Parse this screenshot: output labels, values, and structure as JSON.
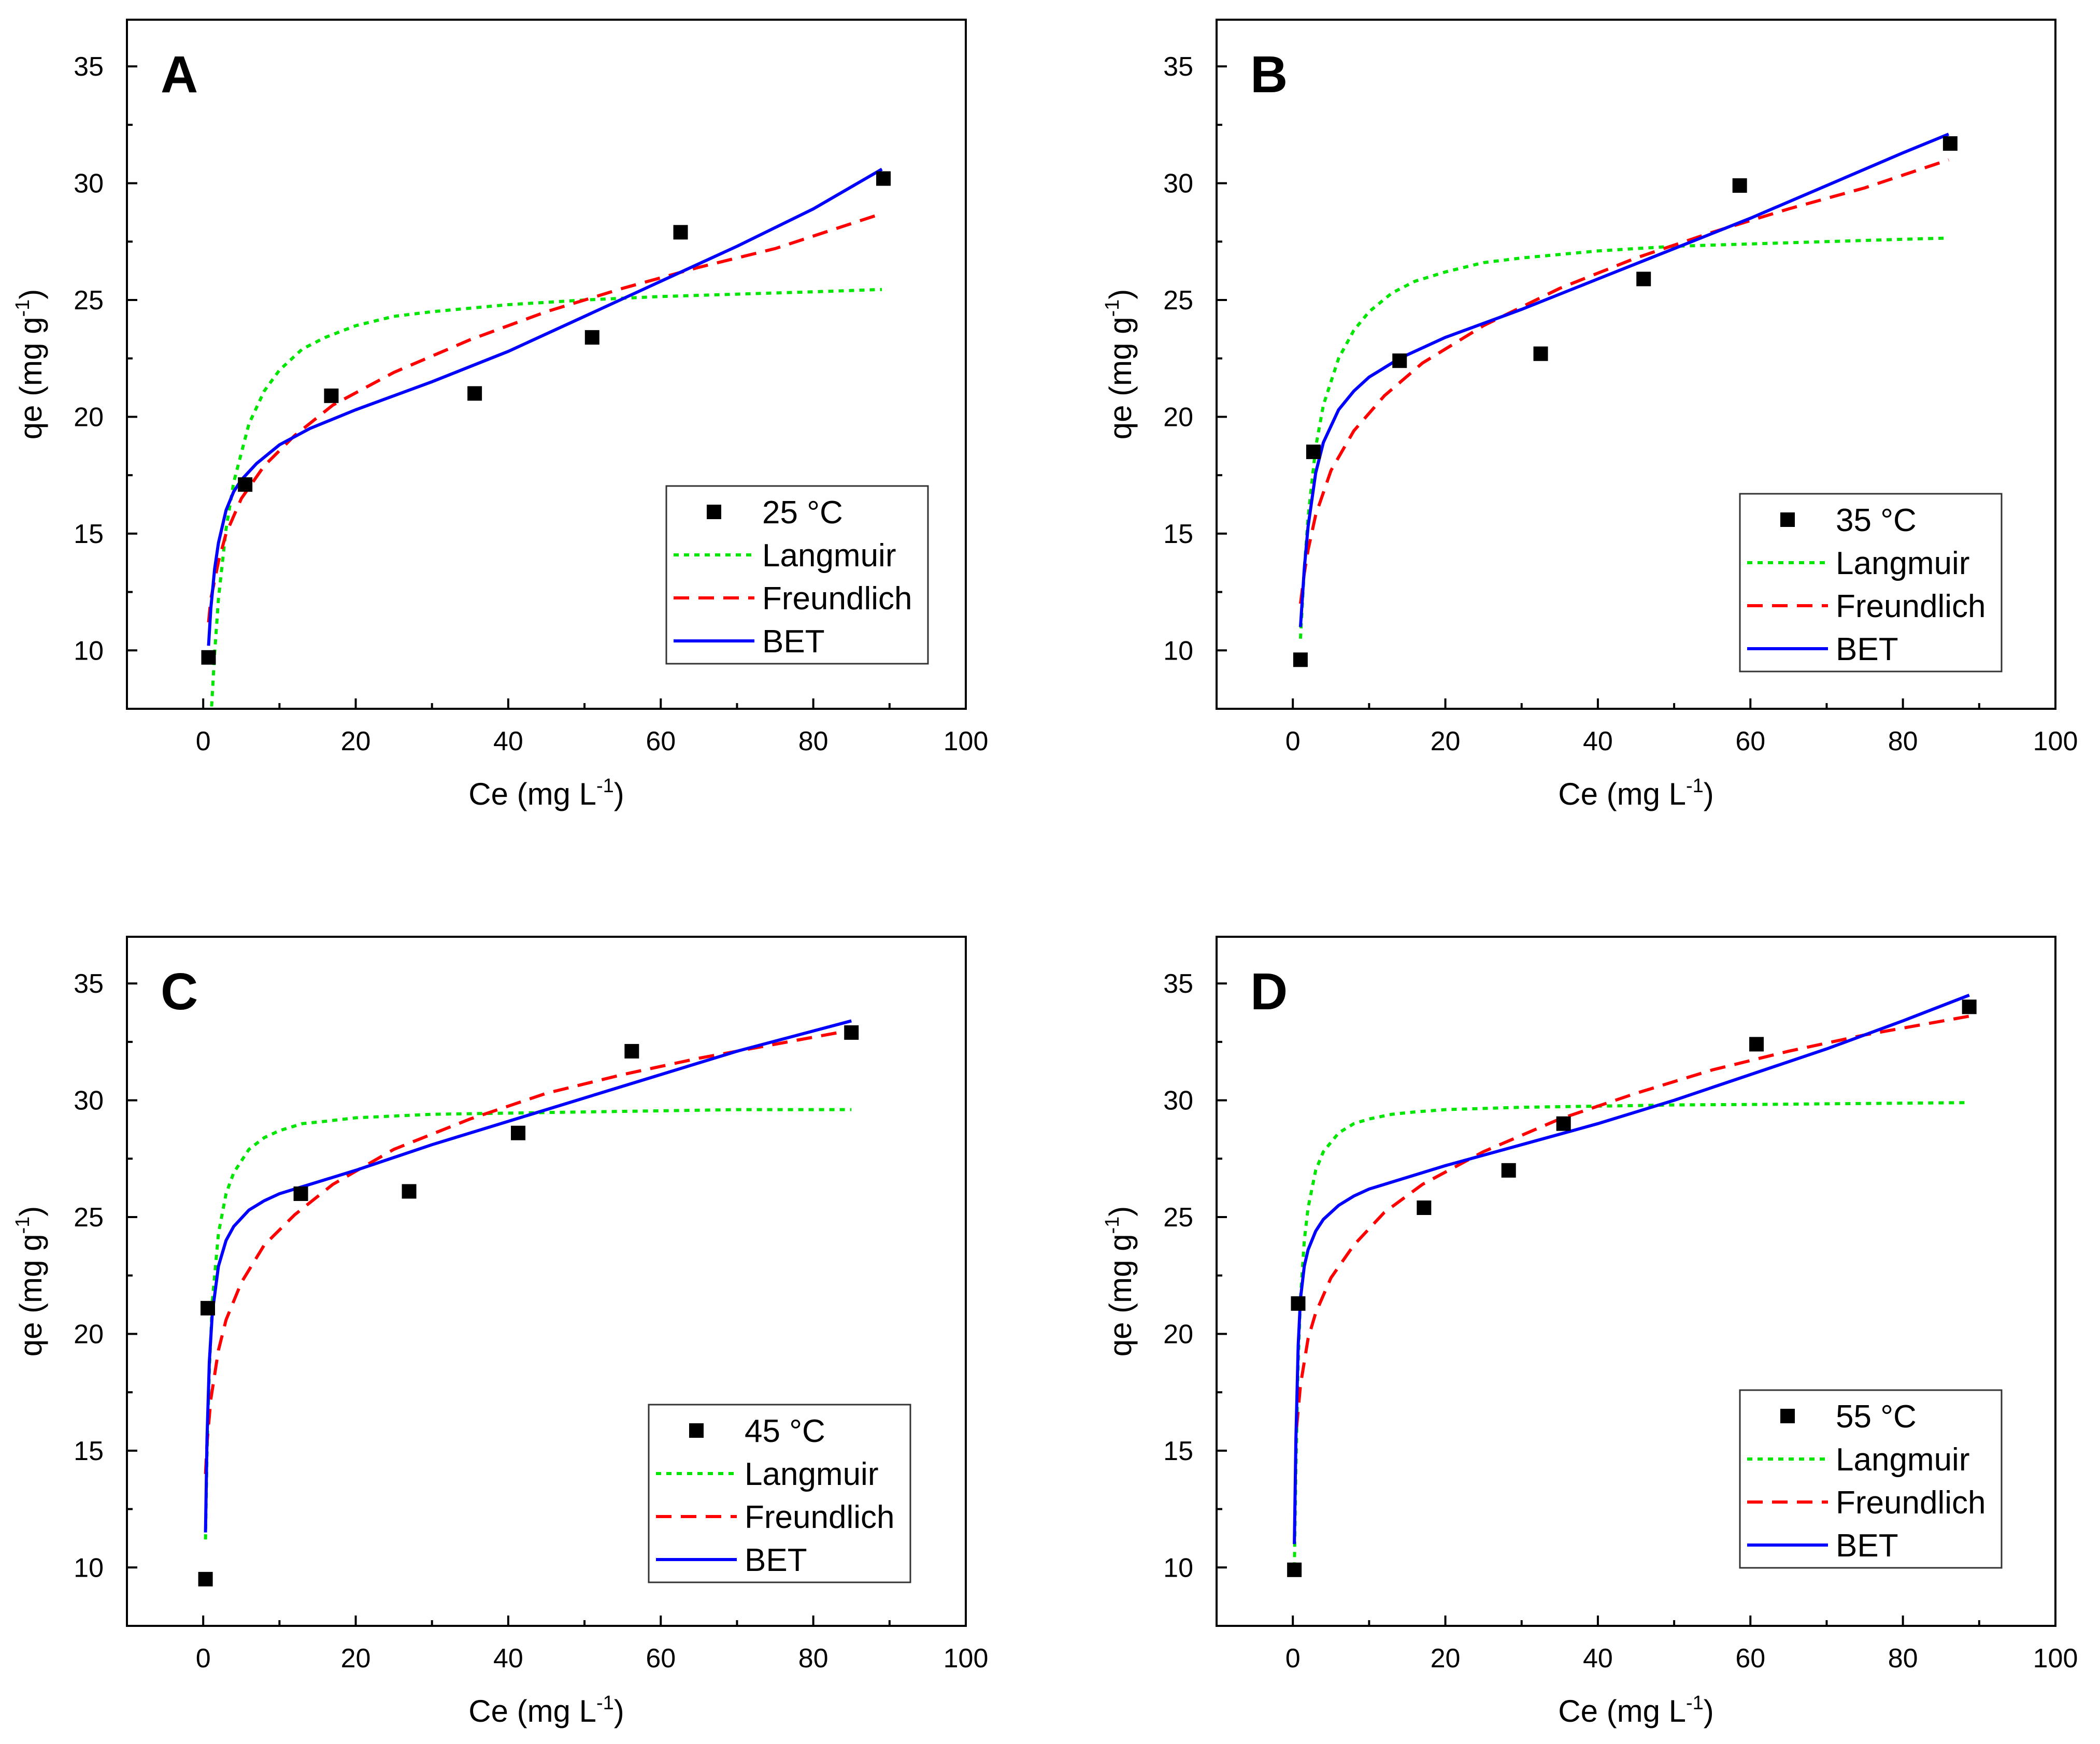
{
  "colors": {
    "points": "#000000",
    "langmuir": "#00e600",
    "freundlich": "#ff0000",
    "bet": "#0000ff",
    "axis": "#000000"
  },
  "legend_labels": {
    "langmuir": "Langmuir",
    "freundlich": "Freundlich",
    "bet": "BET"
  },
  "chart_data": [
    {
      "type": "scatter",
      "panel": "A",
      "xlabel_main": "Ce (mg L",
      "xlabel_sup": "-1",
      "xlabel_end": ")",
      "ylabel_main": "qe (mg g",
      "ylabel_sup": "-1",
      "ylabel_end": ")",
      "xlim": [
        -10,
        100
      ],
      "ylim": [
        7.5,
        37
      ],
      "xticks": [
        0,
        20,
        40,
        60,
        80,
        100
      ],
      "yticks": [
        10,
        15,
        20,
        25,
        30,
        35
      ],
      "legend_position": "lower-right",
      "series": [
        {
          "name": "25 °C",
          "kind": "points",
          "x": [
            0.7,
            5.5,
            16.8,
            35.6,
            51.0,
            62.6,
            89.2
          ],
          "y": [
            9.7,
            17.1,
            20.9,
            21.0,
            23.4,
            27.9,
            30.2
          ]
        },
        {
          "name": "Langmuir",
          "kind": "line",
          "x": [
            1.1,
            1.5,
            2,
            3,
            4,
            6,
            8,
            10,
            13,
            16,
            20,
            25,
            30,
            40,
            50,
            60,
            70,
            80,
            89
          ],
          "y": [
            7.6,
            9.9,
            12.2,
            15.2,
            17.2,
            19.7,
            21.1,
            22.0,
            22.9,
            23.4,
            23.9,
            24.3,
            24.5,
            24.8,
            25.0,
            25.15,
            25.25,
            25.35,
            25.45
          ]
        },
        {
          "name": "Freundlich",
          "kind": "line",
          "x": [
            0.7,
            1,
            2,
            3,
            5,
            8,
            12,
            17,
            25,
            35,
            45,
            55,
            65,
            75,
            89
          ],
          "y": [
            11.2,
            12.2,
            13.8,
            15.0,
            16.5,
            17.9,
            19.2,
            20.5,
            21.9,
            23.3,
            24.5,
            25.5,
            26.4,
            27.2,
            28.7
          ]
        },
        {
          "name": "BET",
          "kind": "line",
          "x": [
            0.7,
            1,
            1.5,
            2,
            3,
            4,
            5,
            7,
            10,
            14,
            20,
            30,
            40,
            50,
            60,
            70,
            80,
            89
          ],
          "y": [
            10.2,
            11.8,
            13.5,
            14.6,
            16.0,
            16.8,
            17.3,
            18.0,
            18.8,
            19.5,
            20.3,
            21.5,
            22.8,
            24.3,
            25.8,
            27.3,
            28.9,
            30.6
          ]
        }
      ]
    },
    {
      "type": "scatter",
      "panel": "B",
      "xlabel_main": "Ce (mg L",
      "xlabel_sup": "-1",
      "xlabel_end": ")",
      "ylabel_main": "qe (mg g",
      "ylabel_sup": "-1",
      "ylabel_end": ")",
      "xlim": [
        -10,
        100
      ],
      "ylim": [
        7.5,
        37
      ],
      "xticks": [
        0,
        20,
        40,
        60,
        80,
        100
      ],
      "yticks": [
        10,
        15,
        20,
        25,
        30,
        35
      ],
      "legend_position": "lower-right",
      "series": [
        {
          "name": "35 °C",
          "kind": "points",
          "x": [
            1.0,
            2.7,
            14.0,
            32.5,
            46.0,
            58.6,
            86.2
          ],
          "y": [
            9.6,
            18.5,
            22.4,
            22.7,
            25.9,
            29.9,
            31.7
          ]
        },
        {
          "name": "Langmuir",
          "kind": "line",
          "x": [
            1,
            1.5,
            2,
            3,
            4,
            6,
            8,
            10,
            13,
            16,
            20,
            25,
            30,
            40,
            50,
            60,
            70,
            80,
            86
          ],
          "y": [
            10.5,
            13.5,
            15.7,
            18.7,
            20.5,
            22.5,
            23.7,
            24.5,
            25.3,
            25.8,
            26.2,
            26.6,
            26.8,
            27.1,
            27.3,
            27.4,
            27.5,
            27.6,
            27.65
          ]
        },
        {
          "name": "Freundlich",
          "kind": "line",
          "x": [
            1,
            1.5,
            2,
            3,
            5,
            8,
            12,
            17,
            25,
            35,
            45,
            55,
            65,
            75,
            86
          ],
          "y": [
            12.0,
            13.3,
            14.3,
            15.8,
            17.7,
            19.4,
            20.9,
            22.3,
            23.9,
            25.5,
            26.8,
            27.9,
            28.9,
            29.8,
            31.0
          ]
        },
        {
          "name": "BET",
          "kind": "line",
          "x": [
            1,
            1.5,
            2,
            3,
            4,
            6,
            8,
            10,
            14,
            20,
            30,
            40,
            50,
            60,
            70,
            80,
            86
          ],
          "y": [
            11.0,
            13.5,
            15.3,
            17.6,
            18.9,
            20.3,
            21.1,
            21.7,
            22.5,
            23.4,
            24.6,
            25.9,
            27.2,
            28.5,
            29.9,
            31.3,
            32.1
          ]
        }
      ]
    },
    {
      "type": "scatter",
      "panel": "C",
      "xlabel_main": "Ce (mg L",
      "xlabel_sup": "-1",
      "xlabel_end": ")",
      "ylabel_main": "qe (mg g",
      "ylabel_sup": "-1",
      "ylabel_end": ")",
      "xlim": [
        -10,
        100
      ],
      "ylim": [
        7.5,
        37
      ],
      "xticks": [
        0,
        20,
        40,
        60,
        80,
        100
      ],
      "yticks": [
        10,
        15,
        20,
        25,
        30,
        35
      ],
      "legend_position": "lower-right",
      "series": [
        {
          "name": "45 °C",
          "kind": "points",
          "x": [
            0.3,
            0.6,
            12.8,
            27.0,
            41.3,
            56.2,
            85.0
          ],
          "y": [
            9.5,
            21.1,
            26.0,
            26.1,
            28.6,
            32.1,
            32.9
          ]
        },
        {
          "name": "Langmuir",
          "kind": "line",
          "x": [
            0.3,
            0.5,
            0.8,
            1.2,
            2,
            3,
            4,
            6,
            8,
            10,
            13,
            16,
            20,
            30,
            40,
            50,
            60,
            70,
            85
          ],
          "y": [
            11.2,
            14.8,
            18.4,
            21.4,
            24.3,
            26.0,
            26.9,
            27.9,
            28.4,
            28.7,
            29.0,
            29.1,
            29.25,
            29.4,
            29.45,
            29.5,
            29.55,
            29.6,
            29.6
          ]
        },
        {
          "name": "Freundlich",
          "kind": "line",
          "x": [
            0.3,
            0.5,
            1,
            2,
            3,
            5,
            8,
            12,
            17,
            25,
            35,
            45,
            55,
            65,
            75,
            85
          ],
          "y": [
            14.0,
            15.3,
            17.2,
            19.3,
            20.6,
            22.2,
            23.8,
            25.1,
            26.4,
            27.9,
            29.2,
            30.3,
            31.1,
            31.8,
            32.4,
            33.0
          ]
        },
        {
          "name": "BET",
          "kind": "line",
          "x": [
            0.3,
            0.5,
            0.8,
            1.2,
            2,
            3,
            4,
            6,
            8,
            10,
            13,
            20,
            30,
            40,
            50,
            60,
            70,
            85
          ],
          "y": [
            11.5,
            15.5,
            18.8,
            20.9,
            22.9,
            24.0,
            24.6,
            25.3,
            25.7,
            26.0,
            26.3,
            27.0,
            28.1,
            29.1,
            30.1,
            31.1,
            32.1,
            33.4
          ]
        }
      ]
    },
    {
      "type": "scatter",
      "panel": "D",
      "xlabel_main": "Ce (mg L",
      "xlabel_sup": "-1",
      "xlabel_end": ")",
      "ylabel_main": "qe (mg g",
      "ylabel_sup": "-1",
      "ylabel_end": ")",
      "xlim": [
        -10,
        100
      ],
      "ylim": [
        7.5,
        37
      ],
      "xticks": [
        0,
        20,
        40,
        60,
        80,
        100
      ],
      "yticks": [
        10,
        15,
        20,
        25,
        30,
        35
      ],
      "legend_position": "lower-right",
      "series": [
        {
          "name": "55 °C",
          "kind": "points",
          "x": [
            0.2,
            0.7,
            17.2,
            28.3,
            35.5,
            60.8,
            88.7
          ],
          "y": [
            9.9,
            21.3,
            25.4,
            27.0,
            29.0,
            32.4,
            34.0
          ]
        },
        {
          "name": "Langmuir",
          "kind": "line",
          "x": [
            0.2,
            0.4,
            0.7,
            1,
            1.5,
            2,
            3,
            4,
            6,
            8,
            10,
            13,
            16,
            20,
            30,
            40,
            50,
            60,
            70,
            88.7
          ],
          "y": [
            10.0,
            14.2,
            18.8,
            21.5,
            24.0,
            25.4,
            27.0,
            27.8,
            28.6,
            29.0,
            29.2,
            29.4,
            29.5,
            29.6,
            29.7,
            29.75,
            29.8,
            29.82,
            29.85,
            29.9
          ]
        },
        {
          "name": "Freundlich",
          "kind": "line",
          "x": [
            0.5,
            1,
            2,
            3,
            5,
            8,
            12,
            17,
            25,
            35,
            45,
            55,
            65,
            75,
            88.7
          ],
          "y": [
            16.0,
            17.8,
            19.8,
            20.9,
            22.4,
            23.8,
            25.2,
            26.4,
            27.8,
            29.2,
            30.3,
            31.3,
            32.1,
            32.8,
            33.6
          ]
        },
        {
          "name": "BET",
          "kind": "line",
          "x": [
            0.2,
            0.4,
            0.7,
            1,
            1.5,
            2,
            3,
            4,
            6,
            8,
            10,
            13,
            20,
            30,
            40,
            50,
            60,
            70,
            80,
            88.7
          ],
          "y": [
            11.0,
            15.5,
            19.5,
            21.5,
            22.9,
            23.6,
            24.4,
            24.9,
            25.5,
            25.9,
            26.2,
            26.5,
            27.2,
            28.1,
            29.0,
            30.0,
            31.1,
            32.2,
            33.4,
            34.5
          ]
        }
      ]
    }
  ]
}
